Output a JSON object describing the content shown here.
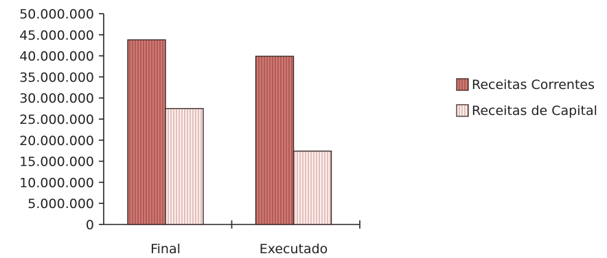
{
  "chart_data": {
    "type": "bar",
    "categories": [
      "Final",
      "Executado"
    ],
    "series": [
      {
        "name": "Receitas Correntes",
        "values": [
          43800000,
          39900000
        ],
        "color": "#c0645f",
        "pattern": "vertical-stripes-dense"
      },
      {
        "name": "Receitas de Capital",
        "values": [
          27500000,
          17400000
        ],
        "color": "#f6e6e2",
        "pattern": "vertical-stripes-light"
      }
    ],
    "y_ticks": [
      "0",
      "5.000.000",
      "10.000.000",
      "15.000.000",
      "20.000.000",
      "25.000.000",
      "30.000.000",
      "35.000.000",
      "40.000.000",
      "45.000.000",
      "50.000.000"
    ],
    "ylim": [
      0,
      50000000
    ],
    "title": "",
    "xlabel": "",
    "ylabel": "",
    "grid": false,
    "legend_position": "right"
  }
}
